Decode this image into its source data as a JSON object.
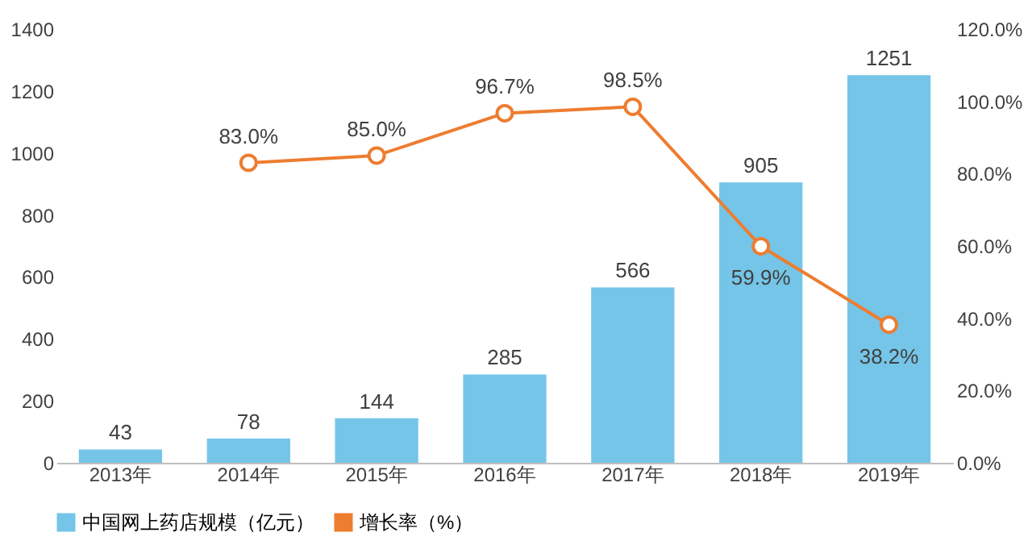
{
  "chart_data": {
    "type": "bar",
    "categories": [
      "2013年",
      "2014年",
      "2015年",
      "2016年",
      "2017年",
      "2018年",
      "2019年"
    ],
    "series": [
      {
        "name": "中国网上药店规模（亿元）",
        "color": "#74c5e8",
        "values": [
          43,
          78,
          144,
          285,
          566,
          905,
          1251
        ],
        "value_labels": [
          "43",
          "78",
          "144",
          "285",
          "566",
          "905",
          "1251"
        ]
      },
      {
        "name": "增长率（%）",
        "type": "line",
        "axis": "y2",
        "color": "#ed7d31",
        "marker": "circle",
        "values": [
          null,
          83.0,
          85.0,
          96.7,
          98.5,
          59.9,
          38.2
        ],
        "value_labels": [
          null,
          "83.0%",
          "85.0%",
          "96.7%",
          "98.5%",
          "59.9%",
          "38.2%"
        ]
      }
    ],
    "ylim": [
      0,
      1400
    ],
    "yticks": [
      0,
      200,
      400,
      600,
      800,
      1000,
      1200,
      1400
    ],
    "y2lim": [
      0,
      120
    ],
    "y2ticks": [
      {
        "value": 0,
        "label": "0.0%"
      },
      {
        "value": 20,
        "label": "20.0%"
      },
      {
        "value": 40,
        "label": "40.0%"
      },
      {
        "value": 60,
        "label": "60.0%"
      },
      {
        "value": 80,
        "label": "80.0%"
      },
      {
        "value": 100,
        "label": "100.0%"
      },
      {
        "value": 120,
        "label": "120.0%"
      }
    ],
    "grid": false,
    "legend": "bottom"
  }
}
